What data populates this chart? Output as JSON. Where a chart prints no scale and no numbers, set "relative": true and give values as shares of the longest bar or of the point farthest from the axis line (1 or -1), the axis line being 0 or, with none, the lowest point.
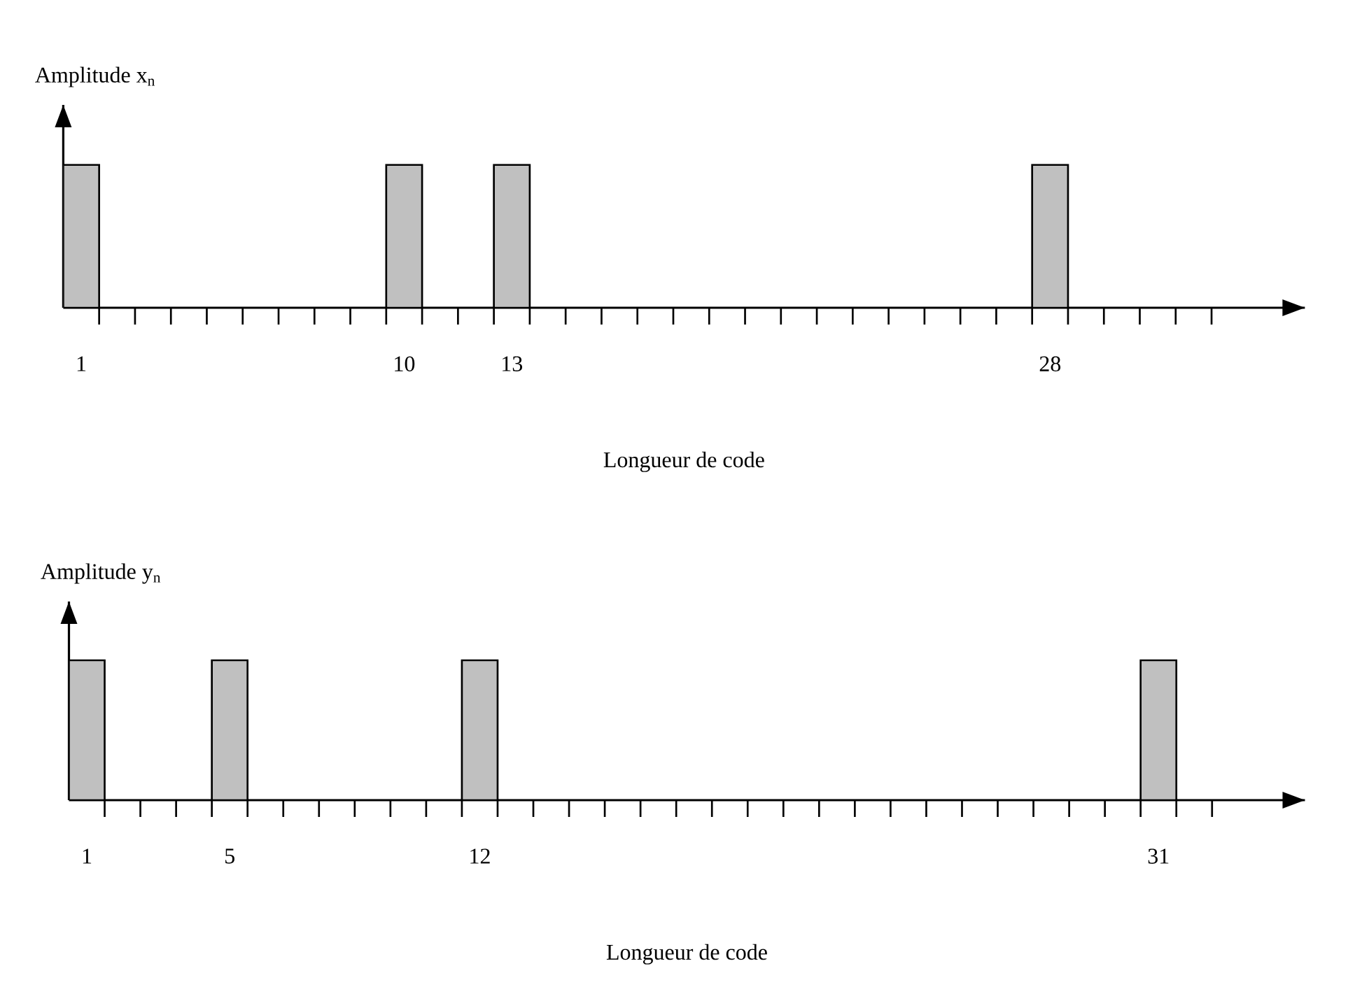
{
  "chart_data": [
    {
      "type": "bar",
      "relative": true,
      "ylabel": "Amplitude x$_{n}$",
      "xlabel": "Longueur de code",
      "color": "#c0c0c0",
      "categories": [
        "1",
        null,
        null,
        null,
        null,
        null,
        null,
        null,
        null,
        "10",
        null,
        null,
        "13",
        null,
        null,
        null,
        null,
        null,
        null,
        null,
        null,
        null,
        null,
        null,
        null,
        null,
        null,
        "28",
        null,
        null,
        null,
        null
      ],
      "values": [
        1,
        null,
        null,
        null,
        null,
        null,
        null,
        null,
        null,
        1,
        null,
        null,
        1,
        null,
        null,
        null,
        null,
        null,
        null,
        null,
        null,
        null,
        null,
        null,
        null,
        null,
        null,
        1,
        null,
        null,
        null,
        null
      ]
    },
    {
      "type": "bar",
      "relative": true,
      "ylabel": "Amplitude y$_{n}$",
      "xlabel": "Longueur de code",
      "color": "#c0c0c0",
      "categories": [
        "1",
        null,
        null,
        null,
        "5",
        null,
        null,
        null,
        null,
        null,
        null,
        "12",
        null,
        null,
        null,
        null,
        null,
        null,
        null,
        null,
        null,
        null,
        null,
        null,
        null,
        null,
        null,
        null,
        null,
        null,
        "31",
        null
      ],
      "values": [
        1,
        null,
        null,
        null,
        1,
        null,
        null,
        null,
        null,
        null,
        null,
        1,
        null,
        null,
        null,
        null,
        null,
        null,
        null,
        null,
        null,
        null,
        null,
        null,
        null,
        null,
        null,
        null,
        null,
        null,
        1,
        null
      ]
    }
  ]
}
